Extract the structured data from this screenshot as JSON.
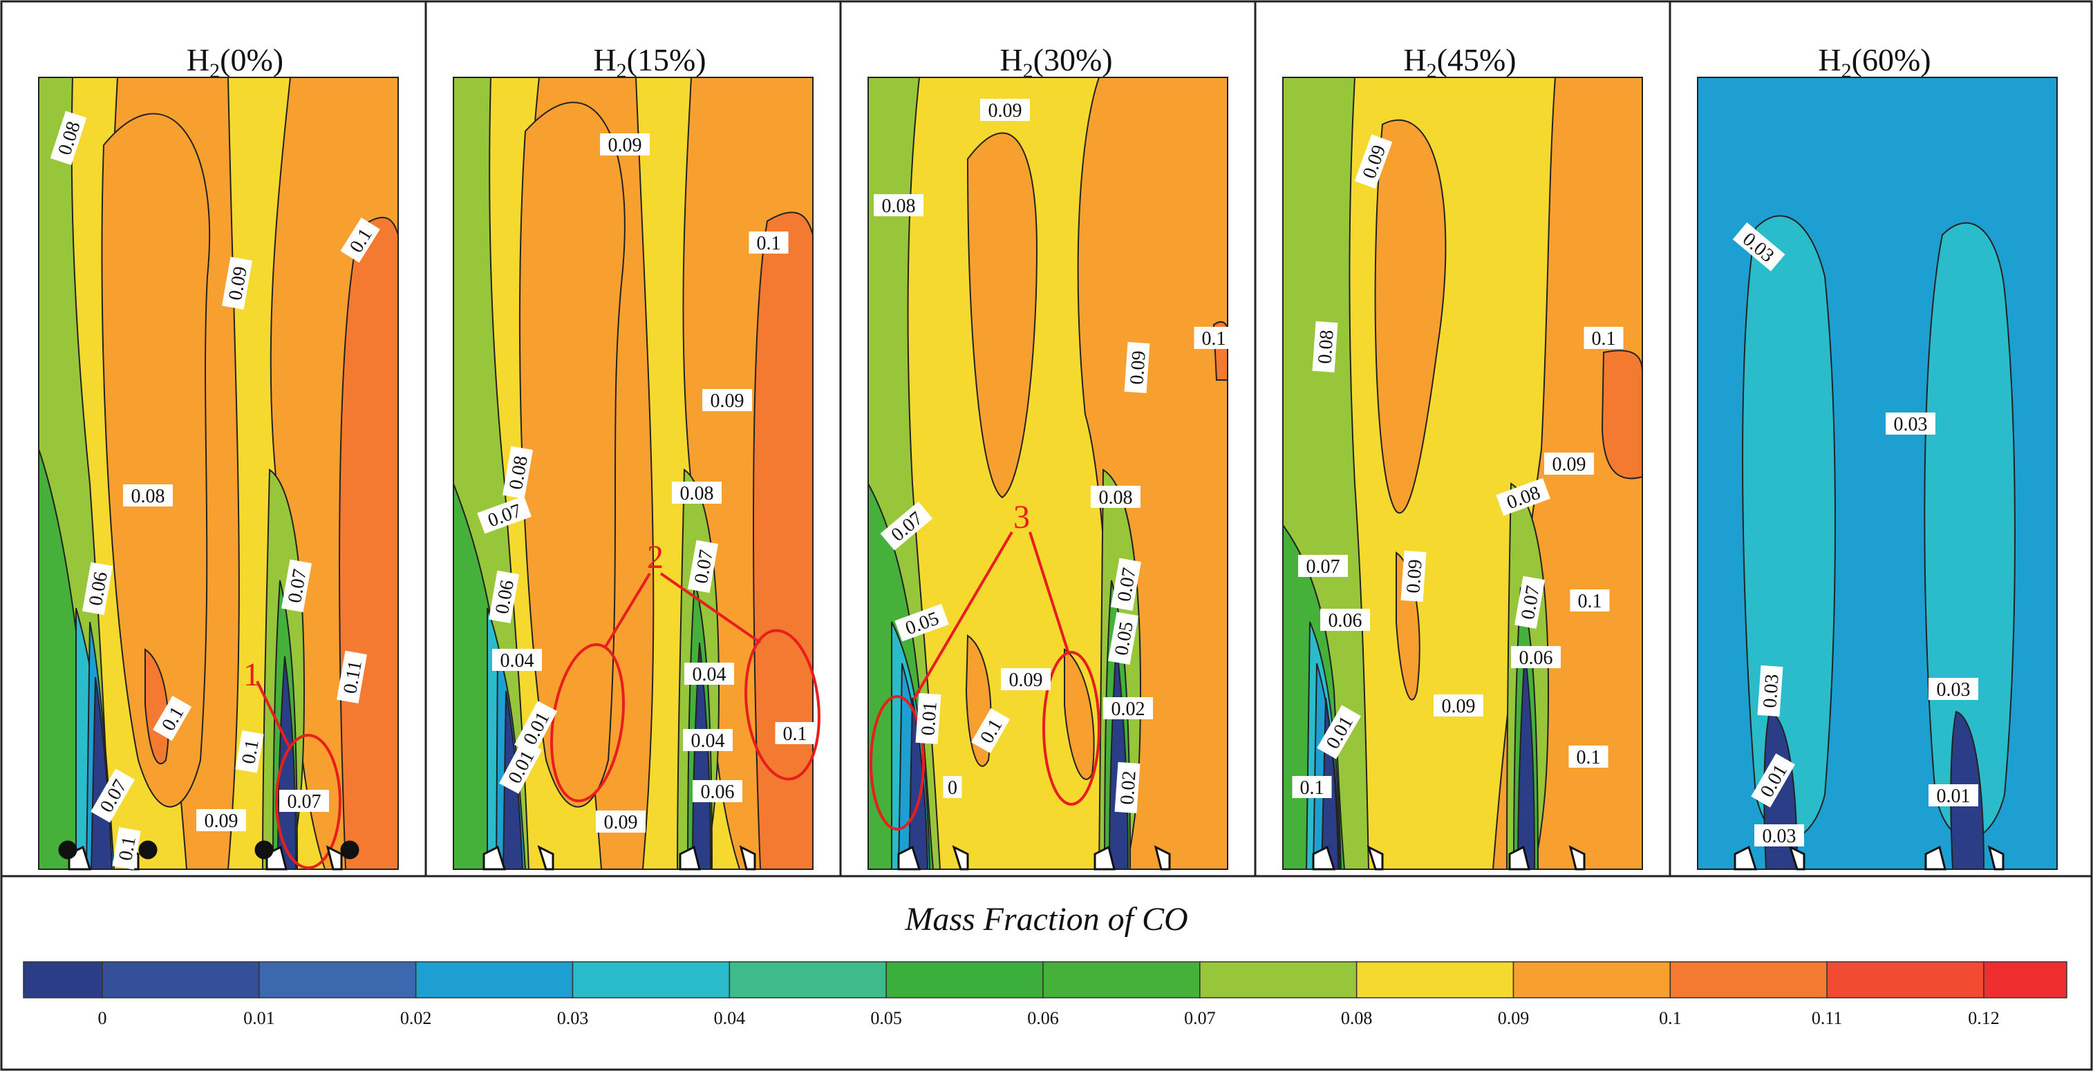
{
  "figure": {
    "panels": [
      {
        "id": "p0",
        "title_prefix": "H",
        "title_sub": "2",
        "title_suffix": "(0%)",
        "contour_labels": [
          "0.08",
          "0.09",
          "0.1",
          "0.08",
          "0.06",
          "0.07",
          "0.11",
          "0.1",
          "0.1",
          "0.07",
          "0.09",
          "0.07",
          "0.1"
        ],
        "annotations": [
          "1"
        ]
      },
      {
        "id": "p1",
        "title_prefix": "H",
        "title_sub": "2",
        "title_suffix": "(15%)",
        "contour_labels": [
          "0.09",
          "0.1",
          "0.09",
          "0.08",
          "0.07",
          "0.08",
          "0.06",
          "0.07",
          "0.04",
          "0.04",
          "0.01",
          "0.04",
          "0.01",
          "0.1",
          "0.06",
          "0.09"
        ],
        "annotations": [
          "2"
        ]
      },
      {
        "id": "p2",
        "title_prefix": "H",
        "title_sub": "2",
        "title_suffix": "(30%)",
        "contour_labels": [
          "0.09",
          "0.08",
          "0.1",
          "0.09",
          "0.07",
          "0.08",
          "0.07",
          "0.05",
          "0.05",
          "0.01",
          "0.09",
          "0.1",
          "0.02",
          "0",
          "0.02"
        ],
        "annotations": [
          "3"
        ]
      },
      {
        "id": "p3",
        "title_prefix": "H",
        "title_sub": "2",
        "title_suffix": "(45%)",
        "contour_labels": [
          "0.09",
          "0.08",
          "0.1",
          "0.09",
          "0.08",
          "0.07",
          "0.09",
          "0.07",
          "0.06",
          "0.1",
          "0.06",
          "0.09",
          "0.01",
          "0.1",
          "0.1"
        ],
        "annotations": []
      },
      {
        "id": "p4",
        "title_prefix": "H",
        "title_sub": "2",
        "title_suffix": "(60%)",
        "contour_labels": [
          "0.03",
          "0.03",
          "0.03",
          "0.03",
          "0.01",
          "0.01",
          "0.03"
        ],
        "annotations": []
      }
    ]
  },
  "colorbar": {
    "title": "Mass Fraction of CO",
    "ticks": [
      "0",
      "0.01",
      "0.02",
      "0.03",
      "0.04",
      "0.05",
      "0.06",
      "0.07",
      "0.08",
      "0.09",
      "0.1",
      "0.11",
      "0.12"
    ],
    "segment_colors": [
      "#2b3d86",
      "#34509a",
      "#3c68b0",
      "#1e9fd1",
      "#2bbccc",
      "#3dbb8a",
      "#3cae3c",
      "#45b03a",
      "#98c63a",
      "#f6d92e",
      "#f7a02f",
      "#f57a31",
      "#f14b33",
      "#ee2e2f"
    ]
  },
  "colors": {
    "c000": "#2b3d86",
    "c001": "#34509a",
    "c002": "#1e9fd1",
    "c003": "#2bbccc",
    "c005": "#3cae3c",
    "c007": "#98c63a",
    "c008": "#f6d92e",
    "c009": "#f7a02f",
    "c010": "#f57a31",
    "c011": "#f14b33",
    "annotation": "#e81e1e",
    "panel60_bg": "#1e9fd1",
    "panel60_plume": "#2bbccc"
  }
}
